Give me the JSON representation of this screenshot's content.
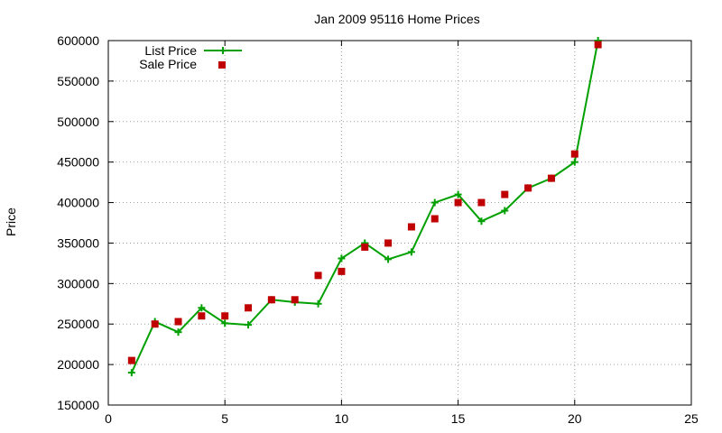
{
  "chart_data": {
    "type": "line",
    "title": "Jan 2009 95116 Home Prices",
    "xlabel": "",
    "ylabel": "Price",
    "xlim": [
      0,
      25
    ],
    "ylim": [
      150000,
      600000
    ],
    "xticks": [
      0,
      5,
      10,
      15,
      20,
      25
    ],
    "yticks": [
      150000,
      200000,
      250000,
      300000,
      350000,
      400000,
      450000,
      500000,
      550000,
      600000
    ],
    "grid": true,
    "legend_position": "top-left",
    "series": [
      {
        "name": "List Price",
        "style": "line-with-plus-markers",
        "color": "#00a000",
        "x": [
          1,
          2,
          3,
          4,
          5,
          6,
          7,
          8,
          9,
          10,
          11,
          12,
          13,
          14,
          15,
          16,
          17,
          18,
          19,
          20,
          21
        ],
        "y": [
          190000,
          253000,
          240000,
          270000,
          251000,
          249000,
          280000,
          277000,
          275000,
          331000,
          350000,
          330000,
          339000,
          400000,
          410000,
          377000,
          390000,
          418000,
          430000,
          450000,
          600000
        ]
      },
      {
        "name": "Sale Price",
        "style": "square-markers",
        "color": "#c00000",
        "x": [
          1,
          2,
          3,
          4,
          5,
          6,
          7,
          8,
          9,
          10,
          11,
          12,
          13,
          14,
          15,
          16,
          17,
          18,
          19,
          20,
          21
        ],
        "y": [
          205000,
          250000,
          253000,
          260000,
          260000,
          270000,
          280000,
          280000,
          310000,
          315000,
          345000,
          350000,
          370000,
          380000,
          400000,
          400000,
          410000,
          418000,
          430000,
          460000,
          595000
        ]
      }
    ]
  }
}
